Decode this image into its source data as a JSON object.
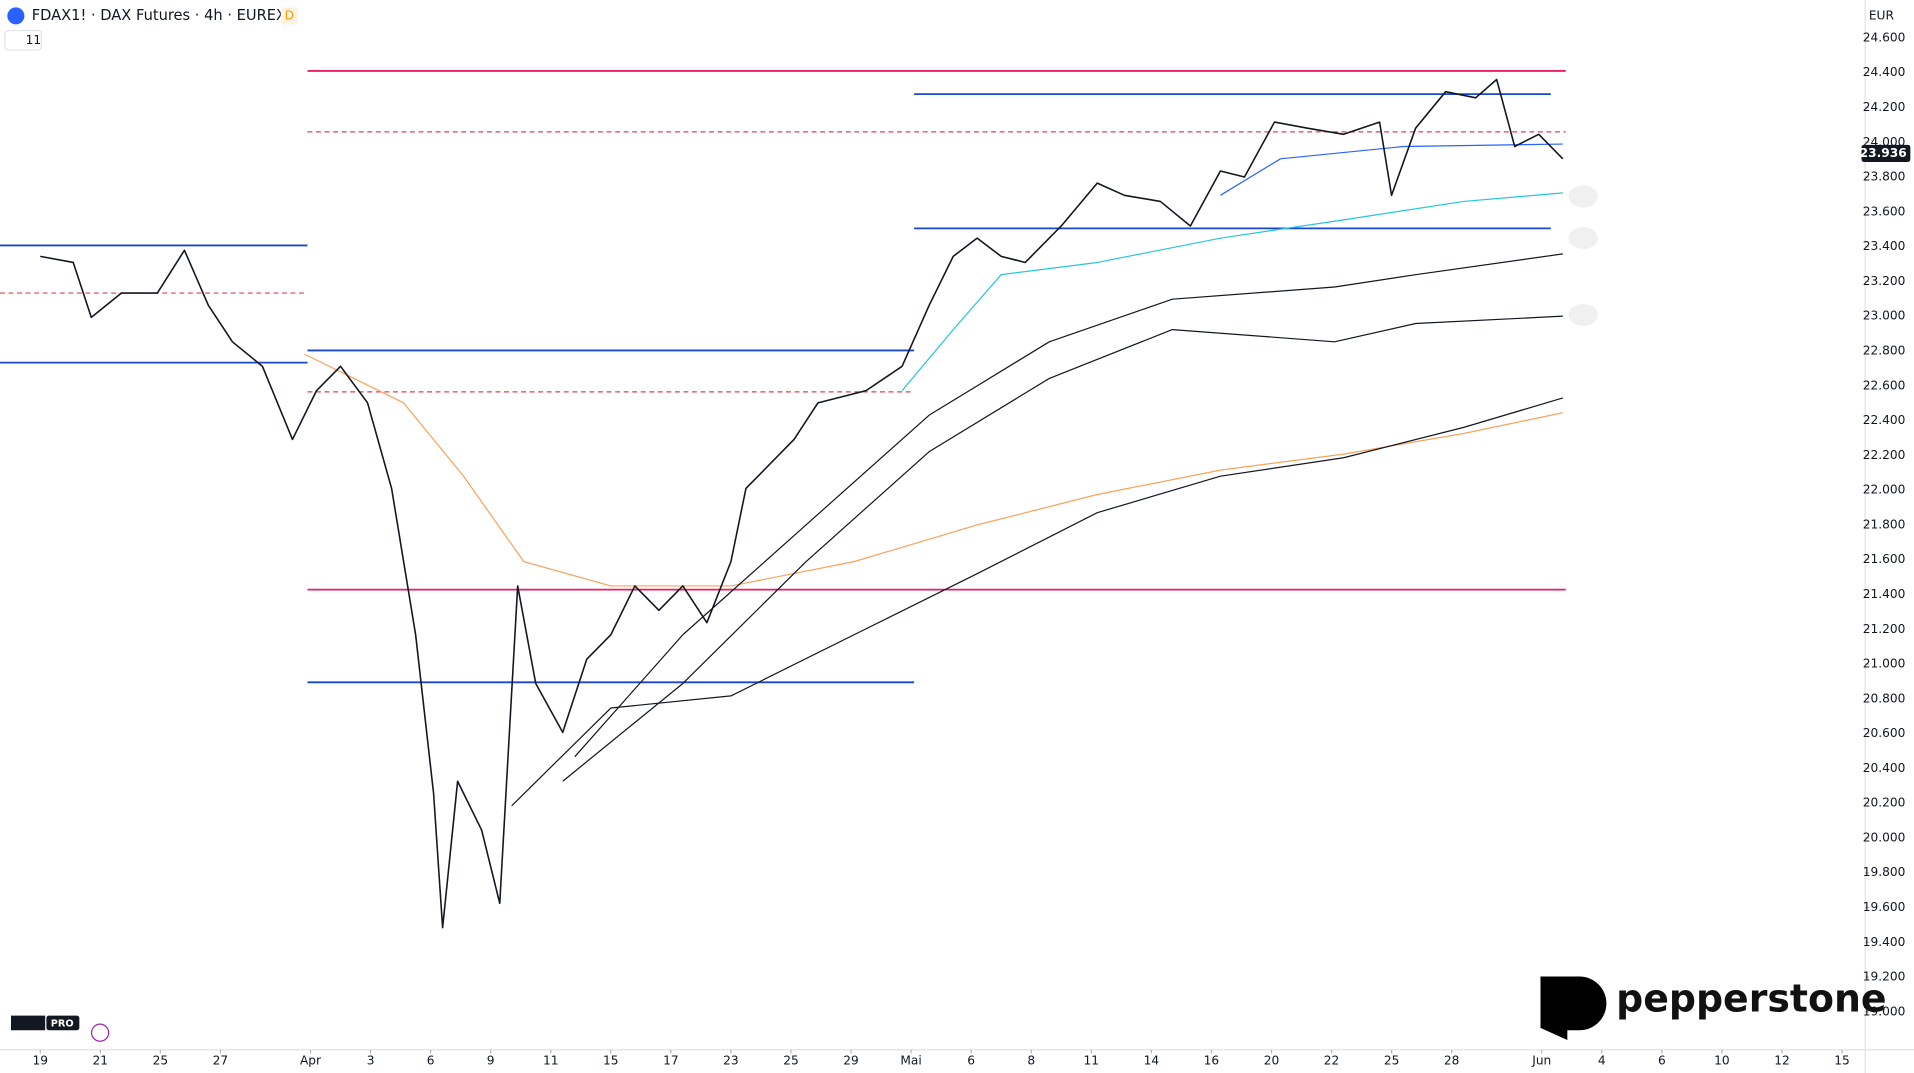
{
  "chart_data": {
    "type": "line",
    "title": "FDAX1! · DAX Futures · 4h · EUREX",
    "badge": "D",
    "indicator_count": 11,
    "currency": "EUR",
    "watermark": "pepperstone",
    "logo_badge": "PRO",
    "last_price": {
      "value": 23936,
      "label": "23.936"
    },
    "xlim": [
      -1.34,
      60.77
    ],
    "ylim": [
      18768,
      24818
    ],
    "xticks": [
      {
        "value": 0,
        "label": "19"
      },
      {
        "value": 2,
        "label": "21"
      },
      {
        "value": 4,
        "label": "25"
      },
      {
        "value": 6,
        "label": "27"
      },
      {
        "value": 9,
        "label": "Apr"
      },
      {
        "value": 11,
        "label": "3"
      },
      {
        "value": 13,
        "label": "6"
      },
      {
        "value": 15,
        "label": "9"
      },
      {
        "value": 17,
        "label": "11"
      },
      {
        "value": 19,
        "label": "15"
      },
      {
        "value": 21,
        "label": "17"
      },
      {
        "value": 23,
        "label": "23"
      },
      {
        "value": 25,
        "label": "25"
      },
      {
        "value": 27,
        "label": "29"
      },
      {
        "value": 29,
        "label": "Mai"
      },
      {
        "value": 31,
        "label": "6"
      },
      {
        "value": 33,
        "label": "8"
      },
      {
        "value": 35,
        "label": "11"
      },
      {
        "value": 37,
        "label": "14"
      },
      {
        "value": 39,
        "label": "16"
      },
      {
        "value": 41,
        "label": "20"
      },
      {
        "value": 43,
        "label": "22"
      },
      {
        "value": 45,
        "label": "25"
      },
      {
        "value": 47,
        "label": "28"
      },
      {
        "value": 50,
        "label": "Jun"
      },
      {
        "value": 52,
        "label": "4"
      },
      {
        "value": 54,
        "label": "6"
      },
      {
        "value": 56,
        "label": "10"
      },
      {
        "value": 58,
        "label": "12"
      },
      {
        "value": 60,
        "label": "15"
      }
    ],
    "yticks": [
      {
        "value": 19000,
        "label": "19.000"
      },
      {
        "value": 19200,
        "label": "19.200"
      },
      {
        "value": 19400,
        "label": "19.400"
      },
      {
        "value": 19600,
        "label": "19.600"
      },
      {
        "value": 19800,
        "label": "19.800"
      },
      {
        "value": 20000,
        "label": "20.000"
      },
      {
        "value": 20200,
        "label": "20.200"
      },
      {
        "value": 20400,
        "label": "20.400"
      },
      {
        "value": 20600,
        "label": "20.600"
      },
      {
        "value": 20800,
        "label": "20.800"
      },
      {
        "value": 21000,
        "label": "21.000"
      },
      {
        "value": 21200,
        "label": "21.200"
      },
      {
        "value": 21400,
        "label": "21.400"
      },
      {
        "value": 21600,
        "label": "21.600"
      },
      {
        "value": 21800,
        "label": "21.800"
      },
      {
        "value": 22000,
        "label": "22.000"
      },
      {
        "value": 22200,
        "label": "22.200"
      },
      {
        "value": 22400,
        "label": "22.400"
      },
      {
        "value": 22600,
        "label": "22.600"
      },
      {
        "value": 22800,
        "label": "22.800"
      },
      {
        "value": 23000,
        "label": "23.000"
      },
      {
        "value": 23200,
        "label": "23.200"
      },
      {
        "value": 23400,
        "label": "23.400"
      },
      {
        "value": 23600,
        "label": "23.600"
      },
      {
        "value": 23800,
        "label": "23.800"
      },
      {
        "value": 24000,
        "label": "24.000"
      },
      {
        "value": 24200,
        "label": "24.200"
      },
      {
        "value": 24400,
        "label": "24.400"
      },
      {
        "value": 24600,
        "label": "24.600"
      }
    ],
    "levels": [
      {
        "value": 24410,
        "x": [
          8.9,
          50.8
        ],
        "color": "#e91e63",
        "dashed": false
      },
      {
        "value": 24277,
        "x": [
          29.1,
          50.3
        ],
        "color": "#1848cc",
        "dashed": false
      },
      {
        "value": 24060,
        "x": [
          8.9,
          50.8
        ],
        "color": "#e04050",
        "dashed": true
      },
      {
        "value": 23407,
        "x": [
          -1.34,
          8.9
        ],
        "color": "#1848cc",
        "dashed": false
      },
      {
        "value": 23133,
        "x": [
          -1.34,
          8.9
        ],
        "color": "#e04050",
        "dashed": true
      },
      {
        "value": 22733,
        "x": [
          -1.34,
          8.9
        ],
        "color": "#1848cc",
        "dashed": false
      },
      {
        "value": 22803,
        "x": [
          8.9,
          29.1
        ],
        "color": "#1848cc",
        "dashed": false
      },
      {
        "value": 22565,
        "x": [
          8.9,
          29.1
        ],
        "color": "#e04050",
        "dashed": true
      },
      {
        "value": 23505,
        "x": [
          29.1,
          50.3
        ],
        "color": "#1848cc",
        "dashed": false
      },
      {
        "value": 21428,
        "x": [
          8.9,
          50.8
        ],
        "color": "#e91e63",
        "dashed": false
      },
      {
        "value": 20895,
        "x": [
          8.9,
          29.1
        ],
        "color": "#1848cc",
        "dashed": false
      }
    ],
    "series": [
      {
        "color": "#f7a35c",
        "width": 1,
        "x": [
          8.8,
          12.1,
          14.1,
          16.1,
          19.0,
          23.0,
          27.1,
          31.2,
          35.2,
          39.3,
          43.4,
          47.4,
          50.7
        ],
        "values": [
          22782,
          22502,
          22080,
          21589,
          21449,
          21449,
          21589,
          21800,
          21975,
          22115,
          22207,
          22326,
          22445
        ]
      },
      {
        "color": "#131722",
        "width": 1,
        "x": [
          15.7,
          19.0,
          23.0,
          27.1,
          31.2,
          35.2,
          39.3,
          43.4,
          47.4,
          50.7
        ],
        "values": [
          20185,
          20747,
          20817,
          21168,
          21519,
          21870,
          22080,
          22186,
          22361,
          22530
        ]
      },
      {
        "color": "#131722",
        "width": 1,
        "x": [
          17.4,
          21.4,
          25.5,
          29.6,
          33.6,
          37.7,
          43.1,
          45.8,
          50.7
        ],
        "values": [
          20326,
          20888,
          21589,
          22221,
          22642,
          22923,
          22853,
          22958,
          23000
        ]
      },
      {
        "color": "#131722",
        "width": 1,
        "x": [
          17.8,
          21.4,
          25.5,
          29.6,
          33.6,
          37.7,
          43.1,
          45.8,
          50.7
        ],
        "values": [
          20467,
          21168,
          21800,
          22431,
          22853,
          23098,
          23168,
          23239,
          23358
        ]
      },
      {
        "color": "#26c6da",
        "width": 1,
        "x": [
          28.7,
          30.4,
          32.0,
          35.2,
          39.3,
          43.4,
          47.4,
          50.7
        ],
        "values": [
          22572,
          22923,
          23239,
          23309,
          23449,
          23554,
          23660,
          23709
        ]
      },
      {
        "color": "#2962ff",
        "width": 1,
        "x": [
          39.3,
          41.3,
          45.4,
          50.7
        ],
        "values": [
          23695,
          23905,
          23976,
          23990
        ]
      },
      {
        "color": "#131722",
        "width": 1.3,
        "x": [
          0,
          1.1,
          1.7,
          2.7,
          3.9,
          4.8,
          5.6,
          6.4,
          7.4,
          8.4,
          9.2,
          10.0,
          10.9,
          11.7,
          12.5,
          13.1,
          13.4,
          13.9,
          14.7,
          15.3,
          15.9,
          16.5,
          17.4,
          18.2,
          19.0,
          19.8,
          20.6,
          21.4,
          22.2,
          23.0,
          23.5,
          24.3,
          25.1,
          25.9,
          26.7,
          27.5,
          28.7,
          29.6,
          30.4,
          31.2,
          32.0,
          32.8,
          34.0,
          35.2,
          36.1,
          37.3,
          38.3,
          39.3,
          40.1,
          41.1,
          42.2,
          43.4,
          44.6,
          45.0,
          45.8,
          46.8,
          47.8,
          48.5,
          49.1,
          49.9,
          50.7
        ],
        "values": [
          23344,
          23309,
          22993,
          23133,
          23133,
          23379,
          23063,
          22853,
          22712,
          22291,
          22572,
          22712,
          22502,
          22010,
          21168,
          20256,
          19484,
          20326,
          20045,
          19624,
          21449,
          20888,
          20607,
          21028,
          21168,
          21449,
          21309,
          21449,
          21238,
          21589,
          22010,
          22150,
          22291,
          22502,
          22537,
          22572,
          22712,
          23063,
          23344,
          23449,
          23344,
          23309,
          23519,
          23765,
          23695,
          23660,
          23519,
          23835,
          23800,
          24116,
          24081,
          24046,
          24116,
          23695,
          24081,
          24291,
          24256,
          24361,
          23976,
          24046,
          23905
        ]
      }
    ]
  }
}
